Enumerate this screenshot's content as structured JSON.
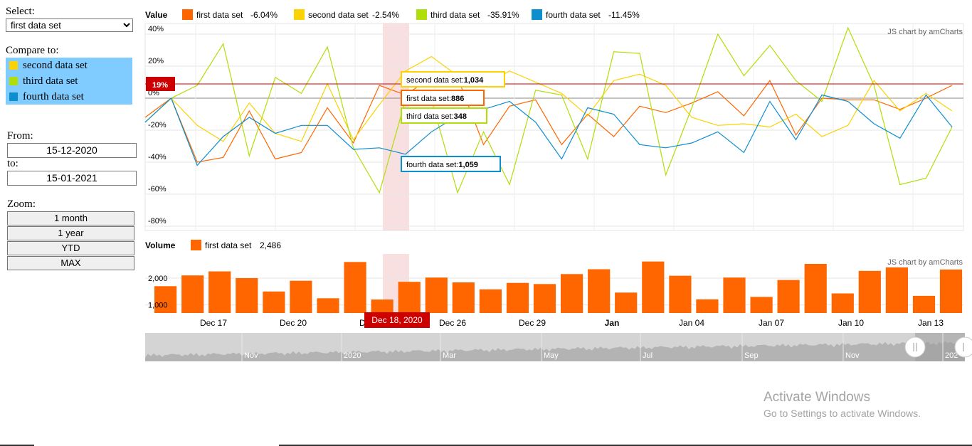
{
  "controls": {
    "select_label": "Select:",
    "selected_option": "first data set",
    "options": [
      "first data set",
      "second data set",
      "third data set",
      "fourth data set"
    ],
    "compare_label": "Compare to:",
    "compare_items": [
      {
        "label": "second data set",
        "color": "#fcd202"
      },
      {
        "label": "third data set",
        "color": "#b0de09"
      },
      {
        "label": "fourth data set",
        "color": "#0d8ecf"
      }
    ],
    "from_label": "From:",
    "from_value": "15-12-2020",
    "to_label": "to:",
    "to_value": "15-01-2021",
    "zoom_label": "Zoom:",
    "zoom_buttons": [
      "1 month",
      "1 year",
      "YTD",
      "MAX"
    ]
  },
  "chart_data": [
    {
      "type": "line",
      "panel_title": "Value",
      "credit": "JS chart by amCharts",
      "y_ticks": [
        "40%",
        "20%",
        "0%",
        "-20%",
        "-40%",
        "-60%",
        "-80%"
      ],
      "ylim": [
        -80,
        40
      ],
      "x_ticks": [
        "Dec 17",
        "Dec 20",
        "Dec 23",
        "Dec 26",
        "Dec 29",
        "Jan",
        "Jan 04",
        "Jan 07",
        "Jan 10",
        "Jan 13"
      ],
      "highlighted_category": "Dec 18, 2020",
      "crosshair_value": "19%",
      "series": [
        {
          "name": "first data set",
          "change": "-6.04%",
          "color": "#ff6600",
          "values": [
            -12,
            0,
            -40,
            -37,
            -8,
            -38,
            -34,
            -6,
            -28,
            8,
            2,
            13,
            13,
            -29,
            -5,
            -1,
            -29,
            -10,
            -24,
            -5,
            -9,
            -3,
            4,
            -11,
            11,
            -23,
            0,
            -1,
            -1,
            -7,
            0,
            8
          ]
        },
        {
          "name": "second data set",
          "change": "-2.54%",
          "color": "#fcd202",
          "values": [
            -15,
            0,
            -17,
            -27,
            -3,
            -22,
            -27,
            9,
            -26,
            -4,
            17,
            26,
            14,
            8,
            17,
            10,
            3,
            -11,
            11,
            15,
            8,
            -12,
            -17,
            -16,
            -18,
            -10,
            -24,
            -17,
            11,
            -8,
            3,
            -8
          ]
        },
        {
          "name": "third data set",
          "change": "-35.91%",
          "color": "#b0de09",
          "values": [
            -15,
            0,
            8,
            34,
            -36,
            13,
            3,
            32,
            -31,
            -59,
            -1,
            -1,
            -59,
            -21,
            -54,
            5,
            2,
            -38,
            29,
            28,
            -48,
            -6,
            40,
            14,
            33,
            11,
            -2,
            44,
            8,
            -54,
            -50,
            -18
          ]
        },
        {
          "name": "fourth data set",
          "change": "-11.45%",
          "color": "#0d8ecf",
          "values": [
            -15,
            0,
            -42,
            -24,
            -12,
            -22,
            -17,
            -17,
            -32,
            -31,
            -35,
            -21,
            -11,
            -7,
            -2,
            -15,
            -38,
            -6,
            -10,
            -29,
            -31,
            -28,
            -21,
            -34,
            -2,
            -26,
            2,
            -2,
            -16,
            -25,
            2,
            -18
          ]
        }
      ],
      "balloons": [
        {
          "name": "second data set",
          "value": "1,034",
          "color": "#fcd202"
        },
        {
          "name": "first data set",
          "value": "886",
          "color": "#ff6600"
        },
        {
          "name": "third data set",
          "value": "348",
          "color": "#b0de09"
        },
        {
          "name": "fourth data set",
          "value": "1,059",
          "color": "#0d8ecf"
        }
      ]
    },
    {
      "type": "bar",
      "panel_title": "Volume",
      "credit": "JS chart by amCharts",
      "series_name": "first data set",
      "series_value": "2,486",
      "color": "#ff6600",
      "y_ticks": [
        "2,000",
        "1,000"
      ],
      "ylim": [
        700,
        2900
      ],
      "values": [
        1700,
        2100,
        2250,
        2000,
        1500,
        1900,
        1250,
        2600,
        1200,
        1860,
        2020,
        1840,
        1580,
        1820,
        1780,
        2150,
        2330,
        1460,
        2620,
        2090,
        1210,
        2020,
        1300,
        1930,
        2530,
        1430,
        2270,
        2400,
        1340,
        2320
      ]
    },
    {
      "type": "area",
      "panel_title": "",
      "labels": [
        "Nov",
        "2020",
        "Mar",
        "May",
        "Jul",
        "Sep",
        "Nov",
        "202"
      ]
    }
  ],
  "watermark": {
    "title": "Activate Windows",
    "subtitle": "Go to Settings to activate Windows."
  }
}
